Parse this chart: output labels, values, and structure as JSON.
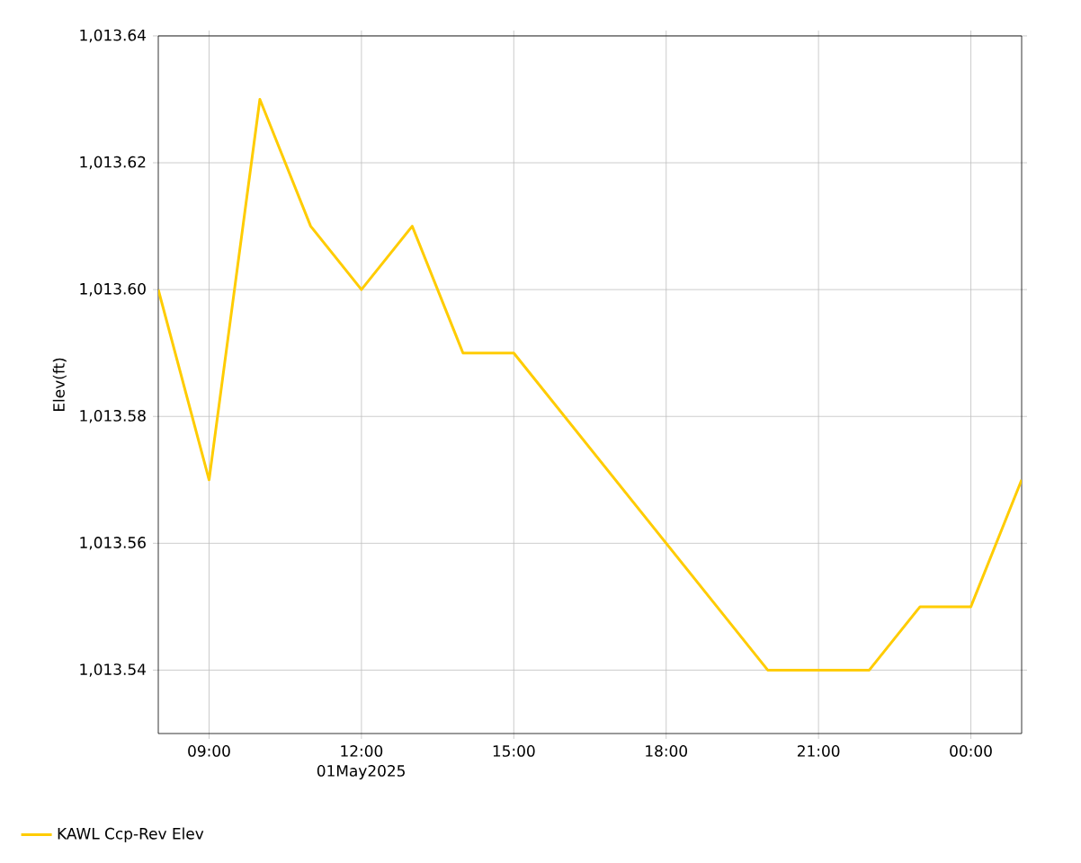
{
  "chart_data": {
    "type": "line",
    "ylabel": "Elev(ft)",
    "xlabel": "01May2025",
    "x": [
      "2025-05-01T08:00",
      "2025-05-01T09:00",
      "2025-05-01T10:00",
      "2025-05-01T11:00",
      "2025-05-01T12:00",
      "2025-05-01T13:00",
      "2025-05-01T14:00",
      "2025-05-01T15:00",
      "2025-05-01T20:00",
      "2025-05-01T21:00",
      "2025-05-01T22:00",
      "2025-05-01T23:00",
      "2025-05-02T00:00",
      "2025-05-02T01:00"
    ],
    "series": [
      {
        "name": "KAWL Ccp-Rev Elev",
        "color": "#ffcc00",
        "values": [
          1013.6,
          1013.57,
          1013.63,
          1013.61,
          1013.6,
          1013.61,
          1013.59,
          1013.59,
          1013.54,
          1013.54,
          1013.54,
          1013.55,
          1013.55,
          1013.57
        ]
      }
    ],
    "xlim": [
      "2025-05-01T08:00",
      "2025-05-02T01:00"
    ],
    "xticks": [
      {
        "value": "2025-05-01T09:00",
        "label": "09:00"
      },
      {
        "value": "2025-05-01T12:00",
        "label": "12:00"
      },
      {
        "value": "2025-05-01T15:00",
        "label": "15:00"
      },
      {
        "value": "2025-05-01T18:00",
        "label": "18:00"
      },
      {
        "value": "2025-05-01T21:00",
        "label": "21:00"
      },
      {
        "value": "2025-05-02T00:00",
        "label": "00:00"
      }
    ],
    "ylim": [
      1013.53,
      1013.64
    ],
    "yticks": [
      {
        "value": 1013.54,
        "label": "1,013.54"
      },
      {
        "value": 1013.56,
        "label": "1,013.56"
      },
      {
        "value": 1013.58,
        "label": "1,013.58"
      },
      {
        "value": 1013.6,
        "label": "1,013.60"
      },
      {
        "value": 1013.62,
        "label": "1,013.62"
      },
      {
        "value": 1013.64,
        "label": "1,013.64"
      }
    ],
    "grid": true,
    "legend": "bottom left",
    "marker": "none",
    "line_style": "solid"
  }
}
